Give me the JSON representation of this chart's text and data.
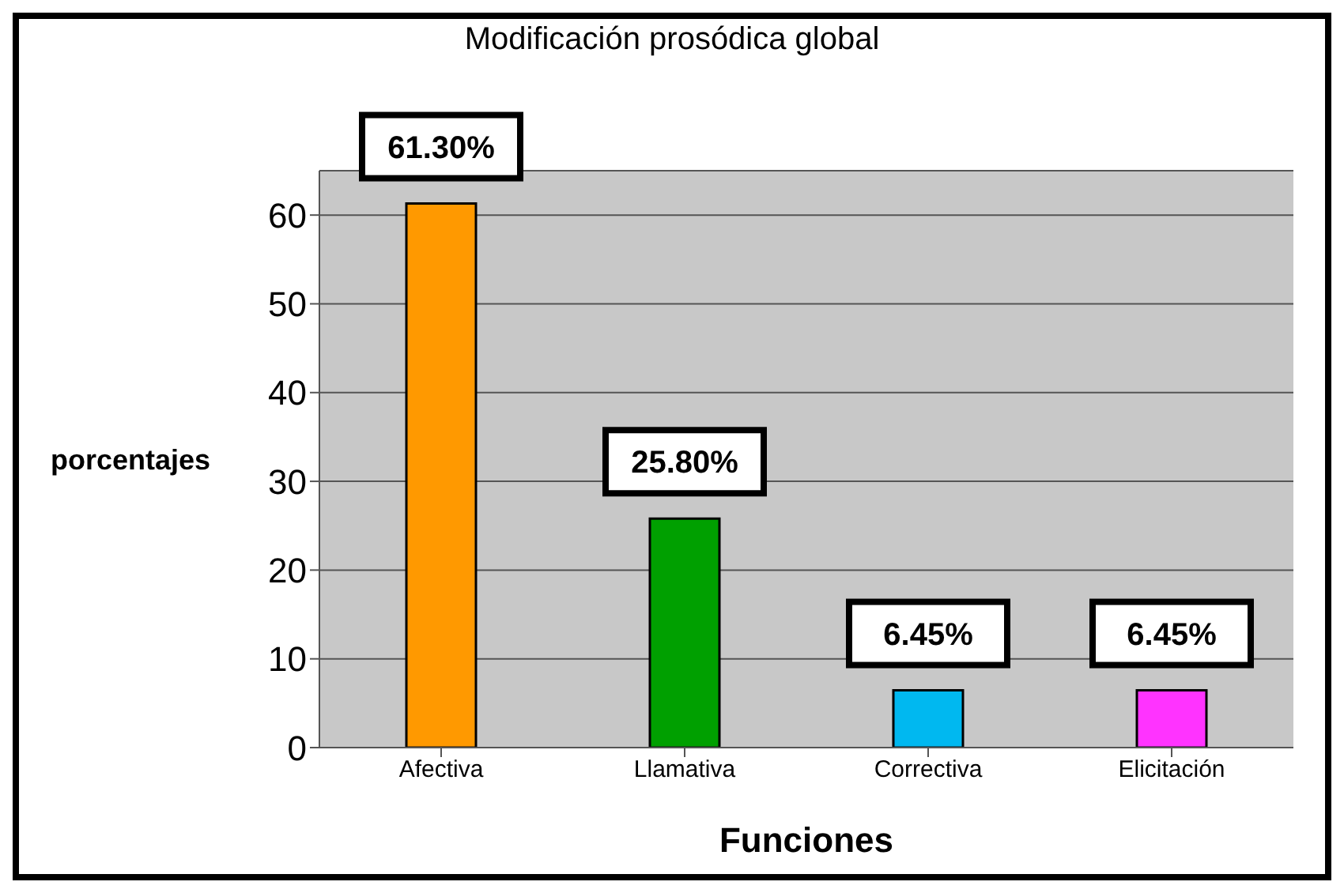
{
  "chart_data": {
    "type": "bar",
    "title": "Modificación prosódica global",
    "xlabel": "Funciones",
    "ylabel": "porcentajes",
    "categories": [
      "Afectiva",
      "Llamativa",
      "Correctiva",
      "Elicitación"
    ],
    "values": [
      61.3,
      25.8,
      6.45,
      6.45
    ],
    "colors": [
      "#ff9900",
      "#00a000",
      "#00b8f0",
      "#ff33ff"
    ],
    "value_labels": [
      "61.30%",
      "25.80%",
      "6.45%",
      "6.45%"
    ],
    "ylim": [
      0,
      65
    ],
    "yticks": [
      0,
      10,
      20,
      30,
      40,
      50,
      60
    ],
    "grid": "y"
  }
}
